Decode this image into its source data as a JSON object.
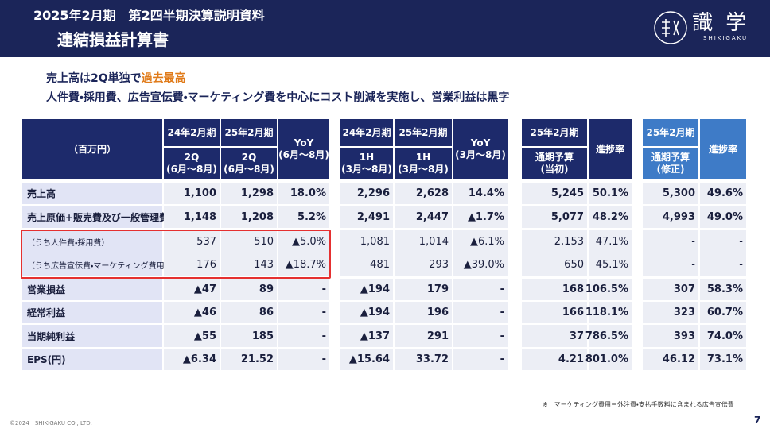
{
  "header": {
    "title": "2025年2月期　第2四半期決算説明資料",
    "subtitle": "連結損益計算書",
    "brand": "識 学",
    "brand_sub": "SHIKIGAKU"
  },
  "lead": {
    "line1_a": "売上高は2Q単独で",
    "line1_b": "過去最高",
    "line2": "人件費・採用費、広告宣伝費・マーケティング費を中心にコスト削減を実施し、営業利益は黒字"
  },
  "table": {
    "columns": [
      {
        "lines": [
          "（百万円）"
        ]
      },
      {
        "top": "24年2月期",
        "lines": [
          "2Q",
          "(6月～8月)"
        ]
      },
      {
        "top": "25年2月期",
        "lines": [
          "2Q",
          "(6月～8月)"
        ]
      },
      {
        "lines": [
          "YoY",
          "(6月～8月)"
        ]
      },
      {
        "top": "24年2月期",
        "lines": [
          "1H",
          "(3月～8月)"
        ]
      },
      {
        "top": "25年2月期",
        "lines": [
          "1H",
          "(3月～8月)"
        ]
      },
      {
        "lines": [
          "YoY",
          "(3月～8月)"
        ]
      },
      {
        "top": "25年2月期",
        "lines": [
          "通期予算",
          "(当初)"
        ]
      },
      {
        "lines": [
          "進捗率"
        ]
      },
      {
        "top": "25年2月期",
        "lines": [
          "通期予算",
          "(修正)"
        ]
      },
      {
        "lines": [
          "進捗率"
        ]
      }
    ],
    "rows": [
      {
        "label": "売上高",
        "cells": [
          "1,100",
          "1,298",
          "18.0%",
          "2,296",
          "2,628",
          "14.4%",
          "5,245",
          "50.1%",
          "5,300",
          "49.6%"
        ]
      },
      {
        "label": "売上原価+販売費及び一般管理費",
        "cells": [
          "1,148",
          "1,208",
          "5.2%",
          "2,491",
          "2,447",
          "▲1.7%",
          "5,077",
          "48.2%",
          "4,993",
          "49.0%"
        ]
      },
      {
        "label": "（うち人件費・採用費）",
        "cells": [
          "537",
          "510",
          "▲5.0%",
          "1,081",
          "1,014",
          "▲6.1%",
          "2,153",
          "47.1%",
          "-",
          "-"
        ]
      },
      {
        "label": "（うち広告宣伝費・マーケティング費用※）",
        "cells": [
          "176",
          "143",
          "▲18.7%",
          "481",
          "293",
          "▲39.0%",
          "650",
          "45.1%",
          "-",
          "-"
        ]
      },
      {
        "label": "営業損益",
        "cells": [
          "▲47",
          "89",
          "-",
          "▲194",
          "179",
          "-",
          "168",
          "106.5%",
          "307",
          "58.3%"
        ]
      },
      {
        "label": "経常利益",
        "cells": [
          "▲46",
          "86",
          "-",
          "▲194",
          "196",
          "-",
          "166",
          "118.1%",
          "323",
          "60.7%"
        ]
      },
      {
        "label": "当期純利益",
        "cells": [
          "▲55",
          "185",
          "-",
          "▲137",
          "291",
          "-",
          "37",
          "786.5%",
          "393",
          "74.0%"
        ]
      },
      {
        "label": "EPS(円)",
        "cells": [
          "▲6.34",
          "21.52",
          "-",
          "▲15.64",
          "33.72",
          "-",
          "4.21",
          "801.0%",
          "46.12",
          "73.1%"
        ]
      }
    ]
  },
  "footer": {
    "note": "※　マーケティング費用＝外注費・支払手数料に含まれる広告宣伝費",
    "copyright": "©2024　SHIKIGAKU CO., LTD.",
    "page": "7"
  }
}
